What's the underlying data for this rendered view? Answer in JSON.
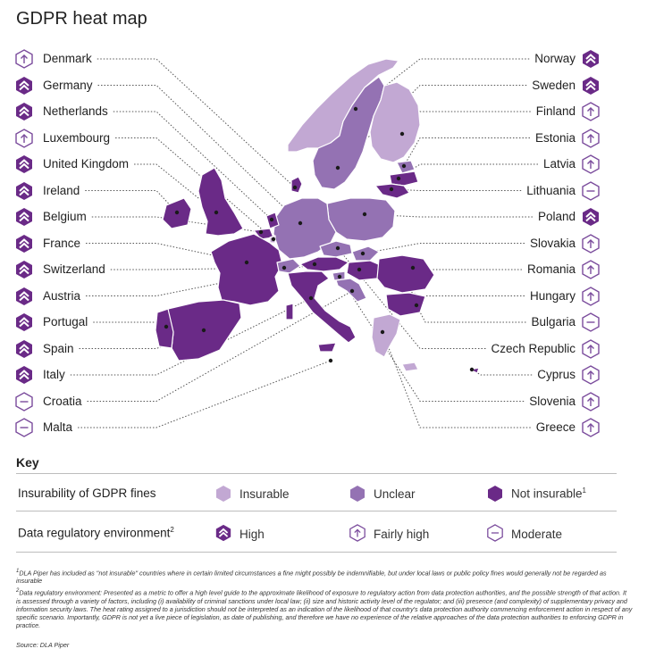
{
  "title": "GDPR heat map",
  "colors": {
    "insurable": "#c2a8d3",
    "unclear": "#9472b3",
    "not_insurable": "#6a2a87",
    "badge_stroke": "#7a4b9c",
    "badge_fill_high": "#6a2a87"
  },
  "left_countries": [
    {
      "name": "Denmark",
      "badge": "fairly-high-arrow-icon"
    },
    {
      "name": "Germany",
      "badge": "high-double-chevron-icon"
    },
    {
      "name": "Netherlands",
      "badge": "high-double-chevron-icon"
    },
    {
      "name": "Luxembourg",
      "badge": "fairly-high-arrow-icon"
    },
    {
      "name": "United Kingdom",
      "badge": "high-double-chevron-icon"
    },
    {
      "name": "Ireland",
      "badge": "high-double-chevron-icon"
    },
    {
      "name": "Belgium",
      "badge": "high-double-chevron-icon"
    },
    {
      "name": "France",
      "badge": "high-double-chevron-icon"
    },
    {
      "name": "Switzerland",
      "badge": "high-double-chevron-icon"
    },
    {
      "name": "Austria",
      "badge": "high-double-chevron-icon"
    },
    {
      "name": "Portugal",
      "badge": "high-double-chevron-icon"
    },
    {
      "name": "Spain",
      "badge": "high-double-chevron-icon"
    },
    {
      "name": "Italy",
      "badge": "high-double-chevron-icon"
    },
    {
      "name": "Croatia",
      "badge": "moderate-dash-icon"
    },
    {
      "name": "Malta",
      "badge": "moderate-dash-icon"
    }
  ],
  "right_countries": [
    {
      "name": "Norway",
      "badge": "high-double-chevron-icon"
    },
    {
      "name": "Sweden",
      "badge": "high-double-chevron-icon"
    },
    {
      "name": "Finland",
      "badge": "fairly-high-arrow-icon"
    },
    {
      "name": "Estonia",
      "badge": "fairly-high-arrow-icon"
    },
    {
      "name": "Latvia",
      "badge": "fairly-high-arrow-icon"
    },
    {
      "name": "Lithuania",
      "badge": "moderate-dash-icon"
    },
    {
      "name": "Poland",
      "badge": "high-double-chevron-icon"
    },
    {
      "name": "Slovakia",
      "badge": "fairly-high-arrow-icon"
    },
    {
      "name": "Romania",
      "badge": "fairly-high-arrow-icon"
    },
    {
      "name": "Hungary",
      "badge": "fairly-high-arrow-icon"
    },
    {
      "name": "Bulgaria",
      "badge": "moderate-dash-icon"
    },
    {
      "name": "Czech Republic",
      "badge": "fairly-high-arrow-icon"
    },
    {
      "name": "Cyprus",
      "badge": "fairly-high-arrow-icon"
    },
    {
      "name": "Slovenia",
      "badge": "fairly-high-arrow-icon"
    },
    {
      "name": "Greece",
      "badge": "fairly-high-arrow-icon"
    }
  ],
  "key": {
    "title": "Key",
    "insurability_label": "Insurability of GDPR fines",
    "insurable": "Insurable",
    "unclear": "Unclear",
    "not_insurable": "Not insurable",
    "not_insurable_sup": "1",
    "environment_label": "Data regulatory environment",
    "environment_sup": "2",
    "high": "High",
    "fairly_high": "Fairly high",
    "moderate": "Moderate"
  },
  "footnotes": {
    "note1_sup": "1",
    "note1": "DLA Piper has included as \"not insurable\" countries where in certain limited circumstances a fine might possibly be indemnifiable, but under local laws or public policy fines would generally not be regarded as insurable",
    "note2_sup": "2",
    "note2": "Data regulatory environment: Presented as a metric to offer a high level guide to the approximate likelihood of exposure to regulatory action from data protection authorities, and the possible strength of that action. It is assessed through a variety of factors, including (i) availability of criminal sanctions under local law; (ii) size and historic activity level of the regulator; and (iii) presence (and complexity) of supplementary privacy and information security laws. The heat rating assigned to a jurisdiction should not be interpreted as an indication of the likelihood of that country's data protection authority commencing enforcement action in respect of any specific scenario. Importantly, GDPR is not yet a live piece of legislation, as date of publishing, and therefore we have no experience of the relative approaches of the data protection authorities to enforcing GDPR in practice.",
    "source": "Source: DLA Piper"
  }
}
